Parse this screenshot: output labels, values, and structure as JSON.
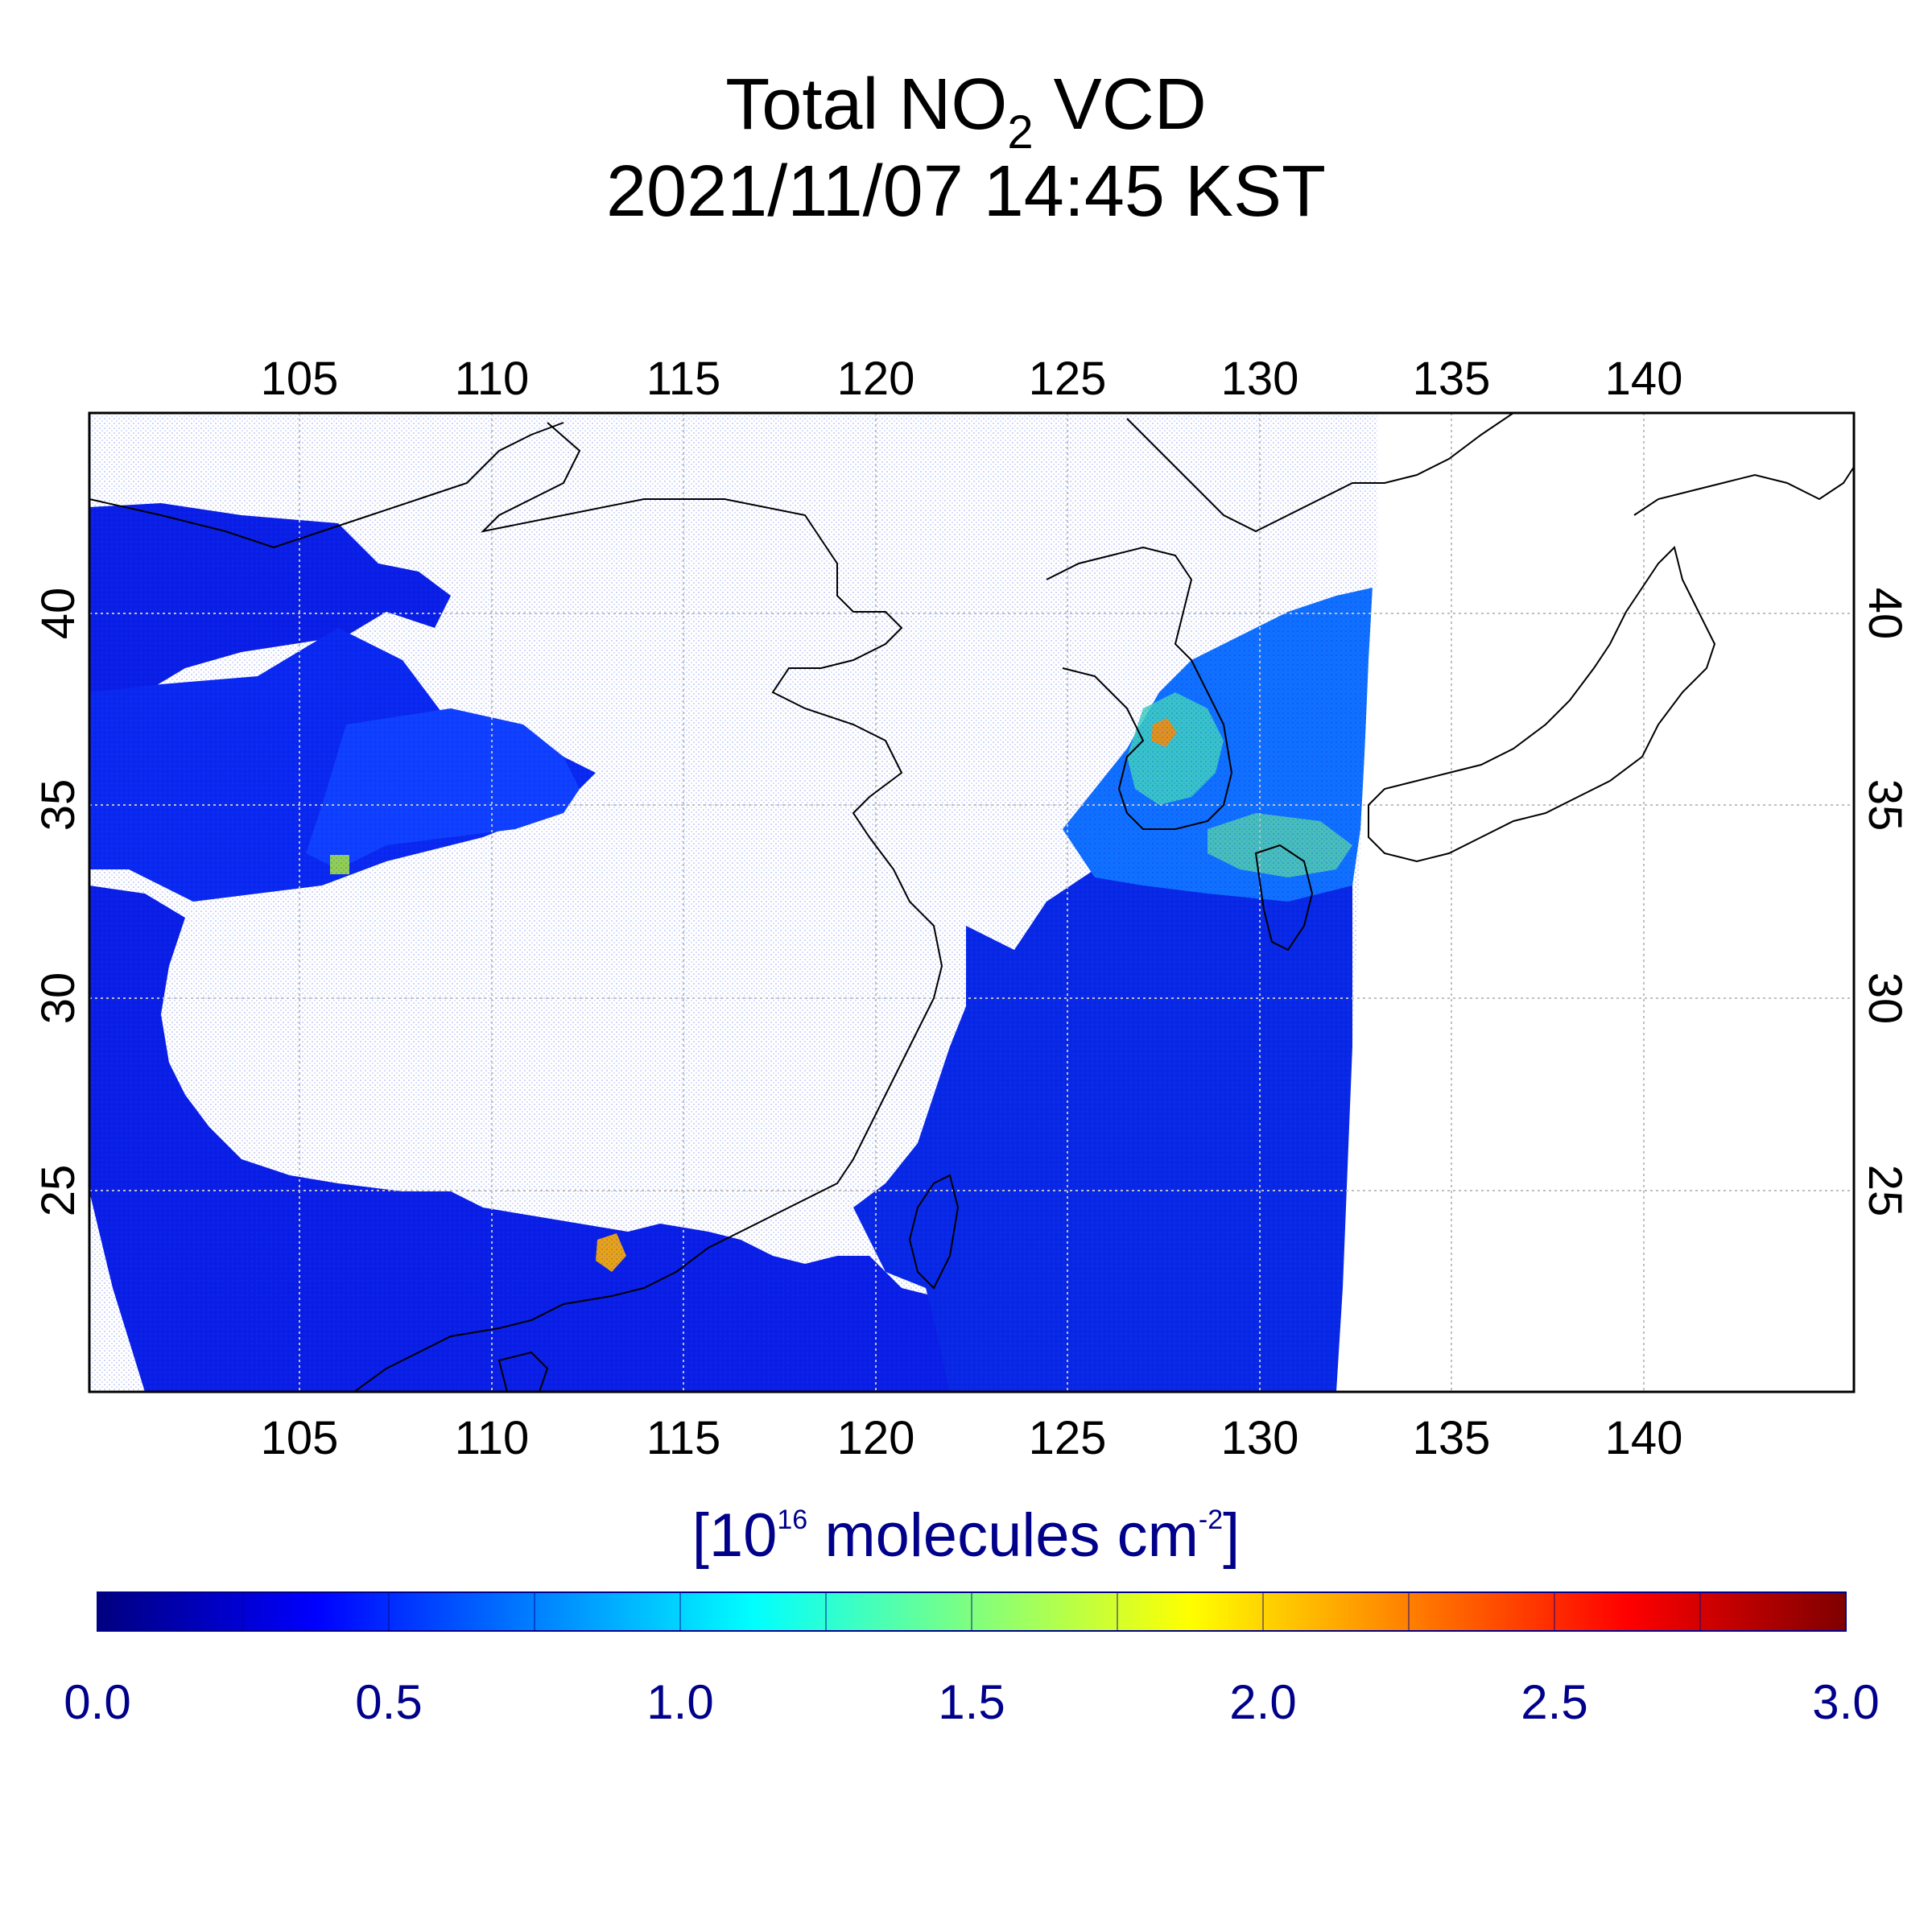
{
  "title": {
    "line1_prefix": "Total NO",
    "line1_sub": "2",
    "line1_suffix": " VCD",
    "line2": "2021/11/07 14:45 KST"
  },
  "map": {
    "lon_range": [
      100,
      146
    ],
    "lat_range": [
      20,
      45
    ],
    "lon_ticks": [
      "105",
      "110",
      "115",
      "120",
      "125",
      "130",
      "135",
      "140"
    ],
    "lat_ticks": [
      "25",
      "30",
      "35",
      "40"
    ],
    "grid": true
  },
  "colorbar": {
    "unit_open": "[10",
    "unit_exp": "16",
    "unit_mid": " molecules cm",
    "unit_exp2": "-2",
    "unit_close": "]",
    "range": [
      0.0,
      3.0
    ],
    "tick_labels": [
      "0.0",
      "0.5",
      "1.0",
      "1.5",
      "2.0",
      "2.5",
      "3.0"
    ],
    "colormap": "jet",
    "label_color": "#00008b"
  }
}
